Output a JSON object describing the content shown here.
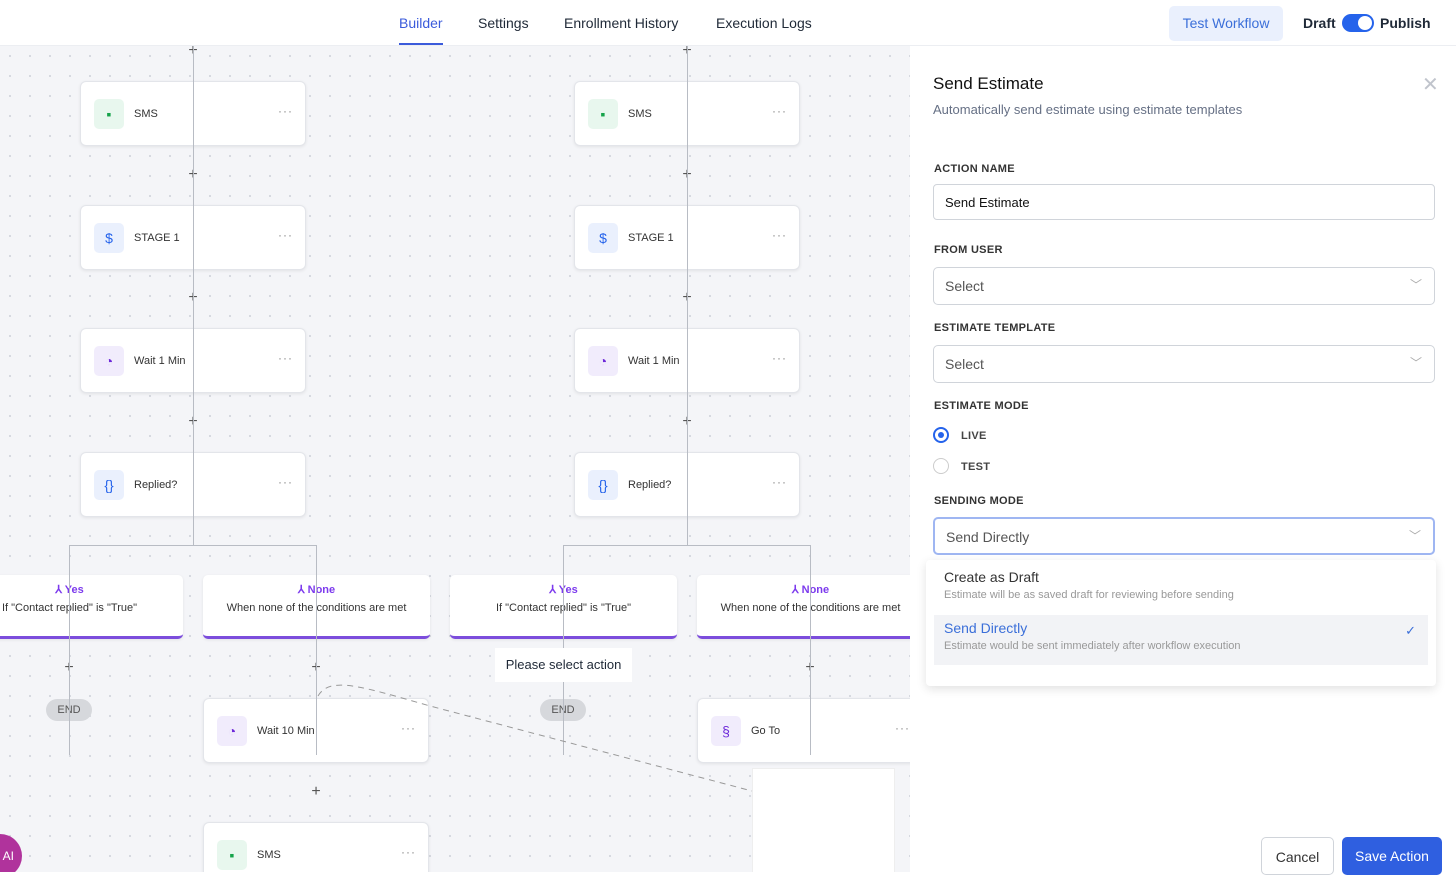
{
  "topbar": {
    "tabs": [
      {
        "label": "Builder",
        "active": true
      },
      {
        "label": "Settings"
      },
      {
        "label": "Enrollment History"
      },
      {
        "label": "Execution Logs"
      }
    ],
    "test_workflow": "Test Workflow",
    "draft": "Draft",
    "publish": "Publish",
    "published": true
  },
  "canvas": {
    "columns": [
      {
        "nodes": [
          {
            "label": "SMS",
            "icon": "sms-icon"
          },
          {
            "label": "STAGE 1",
            "icon": "dollar-icon"
          },
          {
            "label": "Wait 1 Min",
            "icon": "clock-icon"
          },
          {
            "label": "Replied?",
            "icon": "braces-icon"
          }
        ],
        "branches": [
          {
            "title": "Yes",
            "desc": "If \"Contact replied\" is \"True\""
          },
          {
            "title": "None",
            "desc": "When none of the conditions are met"
          }
        ]
      },
      {
        "nodes": [
          {
            "label": "SMS",
            "icon": "sms-icon"
          },
          {
            "label": "STAGE 1",
            "icon": "dollar-icon"
          },
          {
            "label": "Wait 1 Min",
            "icon": "clock-icon"
          },
          {
            "label": "Replied?",
            "icon": "braces-icon"
          }
        ],
        "branches": [
          {
            "title": "Yes",
            "desc": "If \"Contact replied\" is \"True\""
          },
          {
            "title": "None",
            "desc": "When none of the conditions are met"
          }
        ]
      }
    ],
    "end": "END",
    "please_select": "Please select action",
    "wait10": "Wait 10 Min",
    "sms": "SMS",
    "goto": "Go To",
    "more": "···",
    "ai": "AI"
  },
  "panel": {
    "title": "Send Estimate",
    "subtitle": "Automatically send estimate using estimate templates",
    "action_name_label": "ACTION NAME",
    "action_name_value": "Send Estimate",
    "from_user_label": "FROM USER",
    "from_user_value": "Select",
    "template_label": "ESTIMATE TEMPLATE",
    "template_value": "Select",
    "mode_label": "ESTIMATE MODE",
    "mode_options": [
      {
        "label": "LIVE",
        "selected": true
      },
      {
        "label": "TEST",
        "selected": false
      }
    ],
    "sending_label": "SENDING MODE",
    "sending_value": "Send Directly",
    "sending_options": [
      {
        "title": "Create as Draft",
        "desc": "Estimate will be as saved draft for reviewing before sending"
      },
      {
        "title": "Send Directly",
        "desc": "Estimate would be sent immediately after workflow execution",
        "selected": true
      }
    ],
    "cancel": "Cancel",
    "save": "Save Action"
  }
}
